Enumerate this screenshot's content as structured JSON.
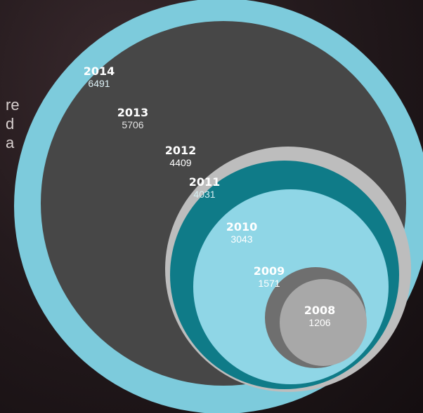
{
  "side_text": {
    "lines": [
      "re",
      "d",
      "a"
    ]
  },
  "chart_data": {
    "type": "bubble",
    "title": "",
    "series": [
      {
        "points": [
          {
            "year": "2014",
            "value": 6491,
            "color": "#7dcbdc",
            "value_color": "#dff3f8"
          },
          {
            "year": "2013",
            "value": 5706,
            "color": "#474747",
            "value_color": "#e4e4e4"
          },
          {
            "year": "2012",
            "value": 4409,
            "color": "#bdbdbd",
            "value_color": "#ffffff"
          },
          {
            "year": "2011",
            "value": 4031,
            "color": "#0f7b88",
            "value_color": "#d6eef1"
          },
          {
            "year": "2010",
            "value": 3043,
            "color": "#8fd6e6",
            "value_color": "#ffffff"
          },
          {
            "year": "2009",
            "value": 1571,
            "color": "#6f6f6f",
            "value_color": "#ffffff"
          },
          {
            "year": "2008",
            "value": 1206,
            "color": "#a8a8a8",
            "value_color": "#ffffff"
          }
        ]
      }
    ]
  }
}
